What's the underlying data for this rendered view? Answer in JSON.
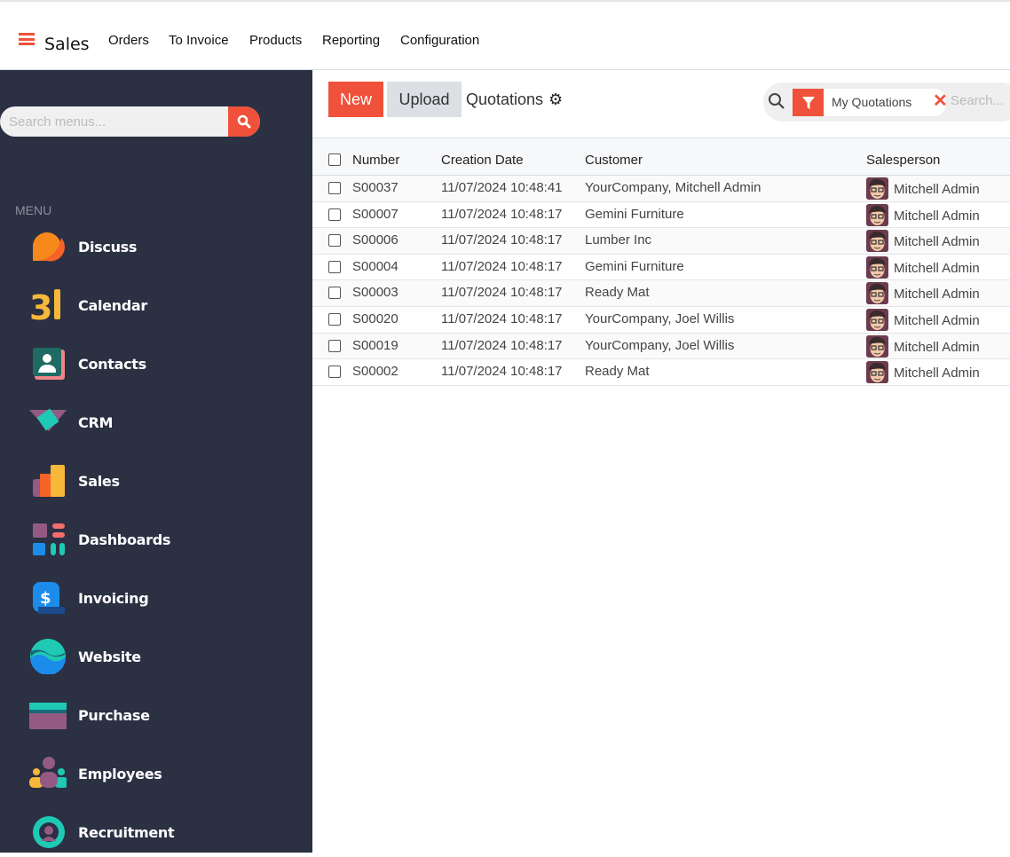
{
  "topbar": {
    "app": "Sales",
    "nav": [
      "Orders",
      "To Invoice",
      "Products",
      "Reporting",
      "Configuration"
    ]
  },
  "sidebar": {
    "search_placeholder": "Search menus...",
    "menu_label": "MENU",
    "items": [
      {
        "label": "Discuss",
        "icon": "discuss-icon"
      },
      {
        "label": "Calendar",
        "icon": "calendar-icon"
      },
      {
        "label": "Contacts",
        "icon": "contacts-icon"
      },
      {
        "label": "CRM",
        "icon": "crm-icon"
      },
      {
        "label": "Sales",
        "icon": "sales-icon"
      },
      {
        "label": "Dashboards",
        "icon": "dashboards-icon"
      },
      {
        "label": "Invoicing",
        "icon": "invoicing-icon"
      },
      {
        "label": "Website",
        "icon": "website-icon"
      },
      {
        "label": "Purchase",
        "icon": "purchase-icon"
      },
      {
        "label": "Employees",
        "icon": "employees-icon"
      },
      {
        "label": "Recruitment",
        "icon": "recruitment-icon"
      }
    ]
  },
  "toolbar": {
    "new": "New",
    "upload": "Upload",
    "breadcrumb": "Quotations",
    "filter": "My Quotations",
    "search_placeholder": "Search..."
  },
  "colors": {
    "accent": "#f0513a",
    "sidebar": "#2b3043"
  },
  "table": {
    "headers": [
      "Number",
      "Creation Date",
      "Customer",
      "Salesperson"
    ],
    "rows": [
      [
        "S00037",
        "11/07/2024 10:48:41",
        "YourCompany, Mitchell Admin",
        "Mitchell Admin"
      ],
      [
        "S00007",
        "11/07/2024 10:48:17",
        "Gemini Furniture",
        "Mitchell Admin"
      ],
      [
        "S00006",
        "11/07/2024 10:48:17",
        "Lumber Inc",
        "Mitchell Admin"
      ],
      [
        "S00004",
        "11/07/2024 10:48:17",
        "Gemini Furniture",
        "Mitchell Admin"
      ],
      [
        "S00003",
        "11/07/2024 10:48:17",
        "Ready Mat",
        "Mitchell Admin"
      ],
      [
        "S00020",
        "11/07/2024 10:48:17",
        "YourCompany, Joel Willis",
        "Mitchell Admin"
      ],
      [
        "S00019",
        "11/07/2024 10:48:17",
        "YourCompany, Joel Willis",
        "Mitchell Admin"
      ],
      [
        "S00002",
        "11/07/2024 10:48:17",
        "Ready Mat",
        "Mitchell Admin"
      ]
    ]
  }
}
